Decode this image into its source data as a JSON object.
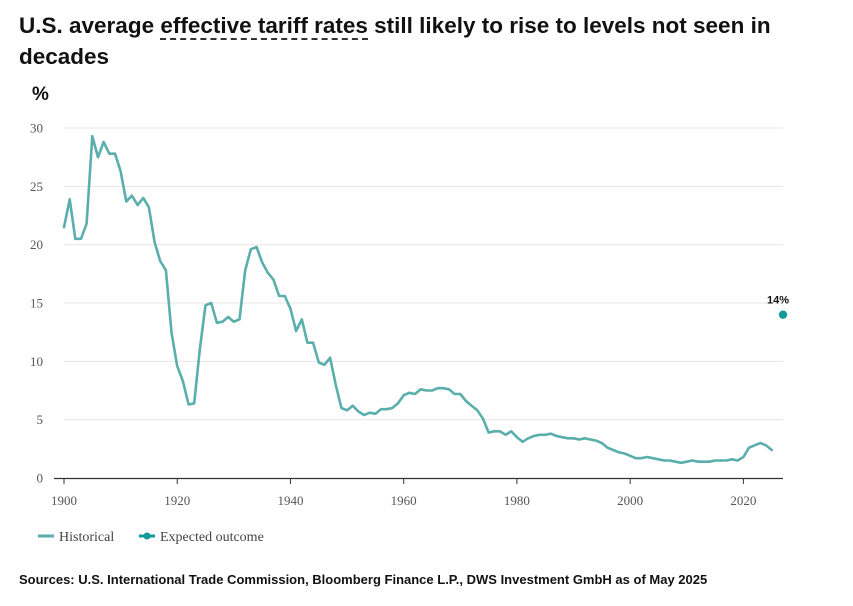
{
  "title_parts": {
    "before": "U.S. average ",
    "highlight": "effective tariff rates",
    "after": " still likely to rise to levels not seen in decades"
  },
  "unit_label": "%",
  "source": "Sources: U.S. International Trade Commission, Bloomberg Finance L.P., DWS Investment GmbH as of May 2025",
  "colors": {
    "historical": "#5aaeac",
    "expected": "#139a97",
    "grid": "#e6e6e6",
    "axis": "#333333"
  },
  "chart_data": {
    "type": "line",
    "xlim": [
      1900,
      2027
    ],
    "ylim": [
      0,
      30
    ],
    "x_ticks": [
      1900,
      1920,
      1940,
      1960,
      1980,
      2000,
      2020
    ],
    "y_ticks": [
      0,
      5,
      10,
      15,
      20,
      25,
      30
    ],
    "grid": true,
    "legend": "bottom-left",
    "series": [
      {
        "name": "Historical",
        "style": "line",
        "x": [
          1900,
          1901,
          1902,
          1903,
          1904,
          1905,
          1906,
          1907,
          1908,
          1909,
          1910,
          1911,
          1912,
          1913,
          1914,
          1915,
          1916,
          1917,
          1918,
          1919,
          1920,
          1921,
          1922,
          1923,
          1924,
          1925,
          1926,
          1927,
          1928,
          1929,
          1930,
          1931,
          1932,
          1933,
          1934,
          1935,
          1936,
          1937,
          1938,
          1939,
          1940,
          1941,
          1942,
          1943,
          1944,
          1945,
          1946,
          1947,
          1948,
          1949,
          1950,
          1951,
          1952,
          1953,
          1954,
          1955,
          1956,
          1957,
          1958,
          1959,
          1960,
          1961,
          1962,
          1963,
          1964,
          1965,
          1966,
          1967,
          1968,
          1969,
          1970,
          1971,
          1972,
          1973,
          1974,
          1975,
          1976,
          1977,
          1978,
          1979,
          1980,
          1981,
          1982,
          1983,
          1984,
          1985,
          1986,
          1987,
          1988,
          1989,
          1990,
          1991,
          1992,
          1993,
          1994,
          1995,
          1996,
          1997,
          1998,
          1999,
          2000,
          2001,
          2002,
          2003,
          2004,
          2005,
          2006,
          2007,
          2008,
          2009,
          2010,
          2011,
          2012,
          2013,
          2014,
          2015,
          2016,
          2017,
          2018,
          2019,
          2020,
          2021,
          2022,
          2023,
          2024,
          2025
        ],
        "values": [
          21.5,
          23.9,
          20.5,
          20.5,
          21.8,
          29.3,
          27.5,
          28.8,
          27.8,
          27.8,
          26.3,
          23.7,
          24.2,
          23.4,
          24.0,
          23.2,
          20.2,
          18.6,
          17.8,
          12.4,
          9.6,
          8.3,
          6.3,
          6.4,
          11.1,
          14.8,
          15.0,
          13.3,
          13.4,
          13.8,
          13.4,
          13.6,
          17.8,
          19.6,
          19.8,
          18.5,
          17.6,
          17.0,
          15.6,
          15.6,
          14.5,
          12.6,
          13.6,
          11.6,
          11.6,
          9.9,
          9.7,
          10.3,
          8.0,
          6.0,
          5.8,
          6.2,
          5.7,
          5.4,
          5.6,
          5.5,
          5.9,
          5.9,
          6.0,
          6.4,
          7.1,
          7.3,
          7.2,
          7.6,
          7.5,
          7.5,
          7.7,
          7.7,
          7.6,
          7.2,
          7.2,
          6.6,
          6.2,
          5.8,
          5.1,
          3.9,
          4.0,
          4.0,
          3.7,
          4.0,
          3.5,
          3.1,
          3.4,
          3.6,
          3.7,
          3.7,
          3.8,
          3.6,
          3.5,
          3.4,
          3.4,
          3.3,
          3.4,
          3.3,
          3.2,
          3.0,
          2.6,
          2.4,
          2.2,
          2.1,
          1.9,
          1.7,
          1.7,
          1.8,
          1.7,
          1.6,
          1.5,
          1.5,
          1.4,
          1.3,
          1.4,
          1.5,
          1.4,
          1.4,
          1.4,
          1.5,
          1.5,
          1.5,
          1.6,
          1.5,
          1.8,
          2.6,
          2.8,
          3.0,
          2.8,
          2.4
        ]
      },
      {
        "name": "Expected outcome",
        "style": "point",
        "x": [
          2027
        ],
        "values": [
          14
        ],
        "label": "14%"
      }
    ]
  }
}
